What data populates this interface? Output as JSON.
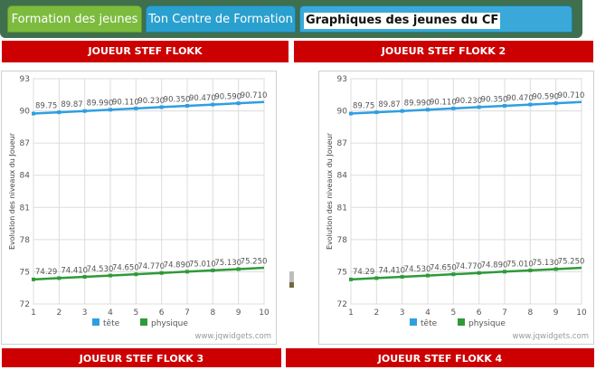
{
  "tabs": [
    {
      "label": "Formation des jeunes"
    },
    {
      "label": "Ton Centre de Formation"
    },
    {
      "label": "Graphiques des jeunes du CF"
    }
  ],
  "players": [
    {
      "label": "JOUEUR STEF FLOKK"
    },
    {
      "label": "JOUEUR STEF FLOKK  2"
    },
    {
      "label": "JOUEUR STEF FLOKK  3"
    },
    {
      "label": "JOUEUR STEF FLOKK  4"
    }
  ],
  "watermark": "www.jqwidgets.com",
  "chart_data": [
    {
      "type": "line",
      "ylabel": "Evolution des niveaux du Joueur",
      "x": [
        1,
        2,
        3,
        4,
        5,
        6,
        7,
        8,
        9,
        10
      ],
      "ylim": [
        72,
        93
      ],
      "yticks": [
        72,
        75,
        78,
        81,
        84,
        87,
        90,
        93
      ],
      "grid": true,
      "legend": "bottom",
      "series": [
        {
          "name": "tête",
          "color": "#2e9fe0",
          "values": [
            89.75,
            89.87,
            89.99,
            90.11,
            90.23,
            90.35,
            90.47,
            90.59,
            90.71,
            90.83
          ],
          "labels": [
            "89.75",
            "89.87",
            "89.990",
            "90.110",
            "90.230",
            "90.350",
            "90.470",
            "90.590",
            "90.710",
            ""
          ]
        },
        {
          "name": "physique",
          "color": "#2f9a3a",
          "values": [
            74.29,
            74.41,
            74.53,
            74.65,
            74.77,
            74.89,
            75.01,
            75.13,
            75.25,
            75.37
          ],
          "labels": [
            "74.29",
            "74.410",
            "74.530",
            "74.650",
            "74.770",
            "74.890",
            "75.010",
            "75.130",
            "75.250",
            ""
          ]
        }
      ]
    },
    {
      "type": "line",
      "ylabel": "Evolution des niveaux du Joueur",
      "x": [
        1,
        2,
        3,
        4,
        5,
        6,
        7,
        8,
        9,
        10
      ],
      "ylim": [
        72,
        93
      ],
      "yticks": [
        72,
        75,
        78,
        81,
        84,
        87,
        90,
        93
      ],
      "grid": true,
      "legend": "bottom",
      "series": [
        {
          "name": "tête",
          "color": "#2e9fe0",
          "values": [
            89.75,
            89.87,
            89.99,
            90.11,
            90.23,
            90.35,
            90.47,
            90.59,
            90.71,
            90.83
          ],
          "labels": [
            "89.75",
            "89.87",
            "89.990",
            "90.110",
            "90.230",
            "90.350",
            "90.470",
            "90.590",
            "90.710",
            ""
          ]
        },
        {
          "name": "physique",
          "color": "#2f9a3a",
          "values": [
            74.29,
            74.41,
            74.53,
            74.65,
            74.77,
            74.89,
            75.01,
            75.13,
            75.25,
            75.37
          ],
          "labels": [
            "74.29",
            "74.410",
            "74.530",
            "74.650",
            "74.770",
            "74.890",
            "75.010",
            "75.130",
            "75.250",
            ""
          ]
        }
      ]
    }
  ]
}
